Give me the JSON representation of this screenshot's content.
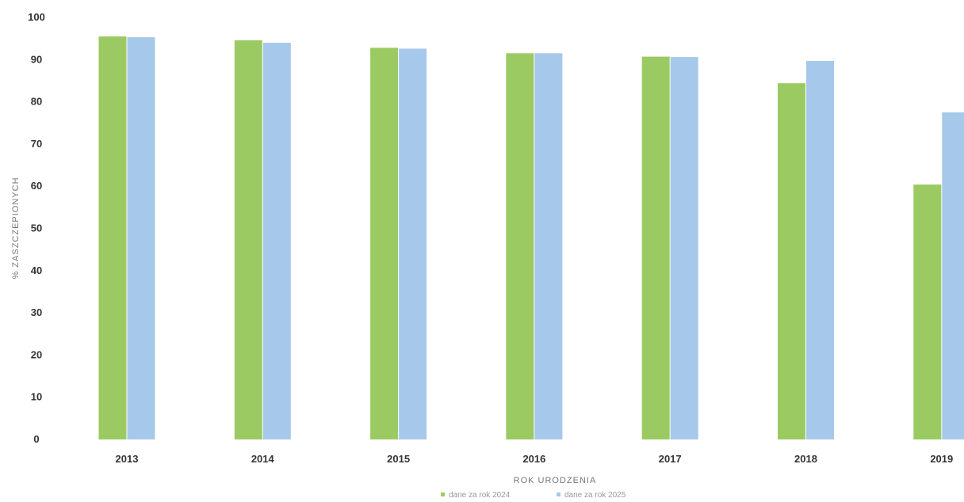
{
  "chart_data": {
    "type": "bar",
    "categories": [
      "2013",
      "2014",
      "2015",
      "2016",
      "2017",
      "2018",
      "2019"
    ],
    "series": [
      {
        "name": "dane za rok 2024",
        "values": [
          95.5,
          94.6,
          92.8,
          91.5,
          90.7,
          84.4,
          60.4
        ],
        "color": "#9bca63"
      },
      {
        "name": "dane za rok 2025",
        "values": [
          95.3,
          94.0,
          92.6,
          91.5,
          90.6,
          89.7,
          77.5
        ],
        "color": "#a6c8ea"
      }
    ],
    "xlabel": "ROK URODZENIA",
    "ylabel": "% ZASZCZEPIONYCH",
    "ylim": [
      0,
      100
    ],
    "yticks": [
      "0",
      "10",
      "20",
      "30",
      "40",
      "50",
      "60",
      "70",
      "80",
      "90",
      "100"
    ],
    "grid": false,
    "legend_position": "bottom"
  }
}
